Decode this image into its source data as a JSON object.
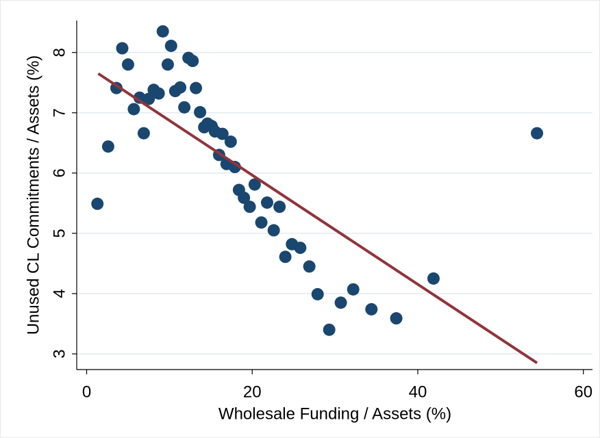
{
  "chart_data": {
    "type": "scatter",
    "xlabel": "Wholesale Funding / Assets (%)",
    "ylabel": "Unused CL Commitments / Assets (%)",
    "x": [
      1.3,
      2.6,
      3.6,
      4.3,
      5.0,
      5.7,
      6.4,
      6.9,
      7.5,
      8.1,
      8.7,
      9.2,
      9.8,
      10.2,
      10.7,
      11.3,
      11.8,
      12.3,
      12.8,
      13.2,
      13.7,
      14.2,
      14.6,
      15.1,
      15.5,
      16.0,
      16.4,
      16.9,
      17.4,
      17.9,
      18.4,
      19.0,
      19.7,
      20.3,
      21.1,
      21.8,
      22.6,
      23.3,
      24.0,
      24.8,
      25.8,
      26.9,
      27.9,
      29.3,
      30.7,
      32.2,
      34.4,
      37.4,
      41.9,
      54.4
    ],
    "values": [
      5.49,
      6.44,
      7.41,
      8.07,
      7.8,
      7.06,
      7.25,
      6.66,
      7.23,
      7.38,
      7.32,
      8.35,
      7.8,
      8.11,
      7.36,
      7.42,
      7.09,
      7.91,
      7.86,
      7.41,
      7.01,
      6.76,
      6.82,
      6.78,
      6.69,
      6.3,
      6.65,
      6.15,
      6.52,
      6.1,
      5.72,
      5.59,
      5.44,
      5.81,
      5.18,
      5.51,
      5.05,
      5.44,
      4.61,
      4.82,
      4.76,
      4.45,
      3.99,
      3.4,
      3.85,
      4.07,
      3.74,
      3.59,
      4.25,
      6.66
    ],
    "color": "#1a476f",
    "fit": {
      "x": [
        1.4,
        54.4
      ],
      "values": [
        7.65,
        2.85
      ],
      "color": "#90353b"
    },
    "xlim": [
      -1.2,
      61.1
    ],
    "ylim": [
      2.74,
      8.53
    ],
    "xticks": [
      0,
      20,
      40,
      60
    ],
    "yticks": [
      3,
      4,
      5,
      6,
      7,
      8
    ],
    "grid": true
  }
}
